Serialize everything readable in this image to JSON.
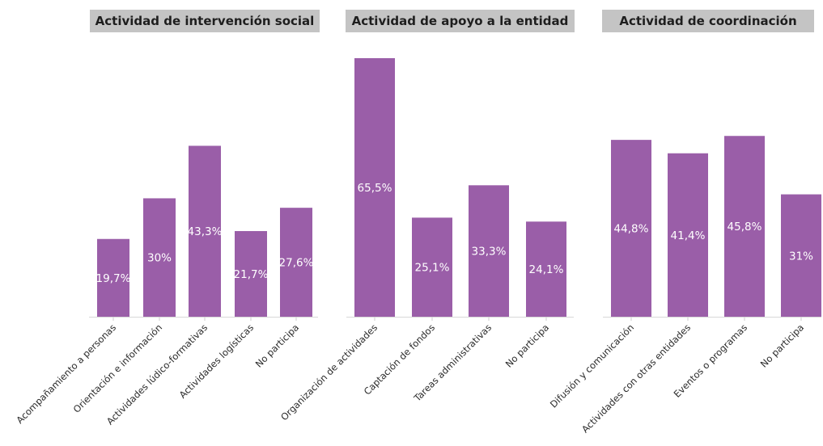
{
  "bar_color": "#9a5ea8",
  "title_bg_color": "#c4c4c4",
  "chart_data": [
    {
      "type": "bar",
      "title": "Actividad de intervención social",
      "ylim": [
        0,
        70
      ],
      "grid": false,
      "categories": [
        "Acompañamiento a personas",
        "Orientación e información",
        "Actividades lúdico-formativas",
        "Actividades logísticas",
        "No participa"
      ],
      "values": [
        19.7,
        30,
        43.3,
        21.7,
        27.6
      ],
      "value_labels": [
        "19,7%",
        "30%",
        "43,3%",
        "21,7%",
        "27,6%"
      ]
    },
    {
      "type": "bar",
      "title": "Actividad de apoyo a la entidad",
      "ylim": [
        0,
        70
      ],
      "grid": false,
      "categories": [
        "Organización de actividades",
        "Captación de fondos",
        "Tareas administrativas",
        "No participa"
      ],
      "values": [
        65.5,
        25.1,
        33.3,
        24.1
      ],
      "value_labels": [
        "65,5%",
        "25,1%",
        "33,3%",
        "24,1%"
      ]
    },
    {
      "type": "bar",
      "title": "Actividad de coordinación",
      "ylim": [
        0,
        70
      ],
      "grid": false,
      "categories": [
        "Difusión y comunicación",
        "Actividades con otras entidades",
        "Eventos o programas",
        "No participa"
      ],
      "values": [
        44.8,
        41.4,
        45.8,
        31
      ],
      "value_labels": [
        "44,8%",
        "41,4%",
        "45,8%",
        "31%"
      ]
    }
  ]
}
